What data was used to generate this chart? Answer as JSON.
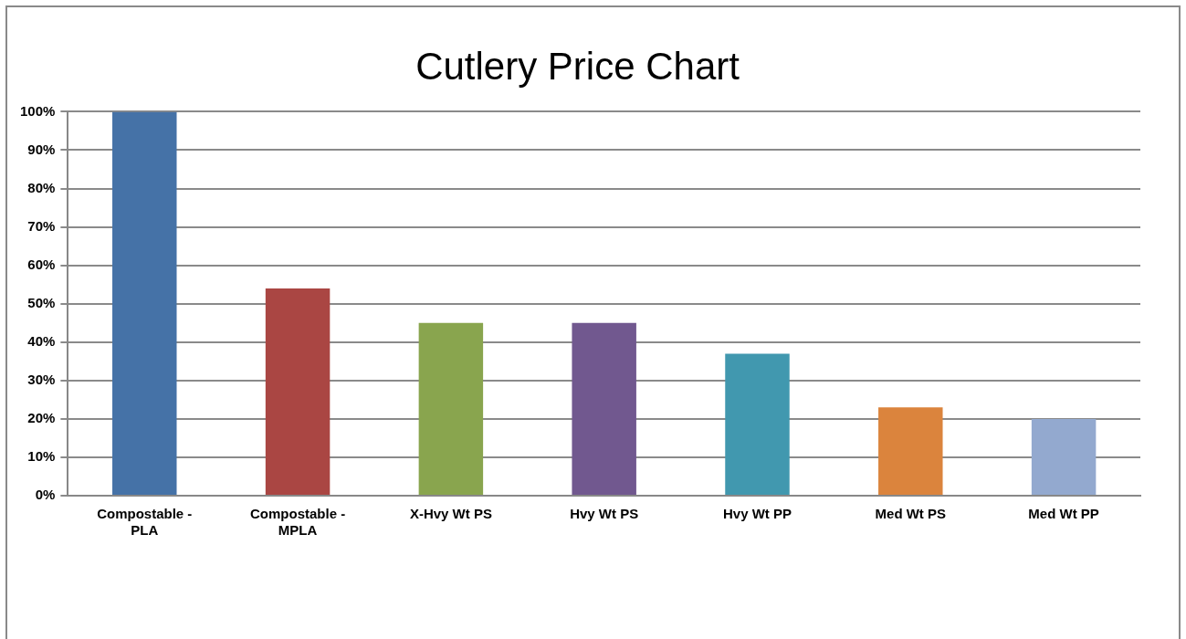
{
  "chart_data": {
    "type": "bar",
    "title": "Cutlery Price Chart",
    "categories": [
      "Compostable - PLA",
      "Compostable - MPLA",
      "X-Hvy Wt PS",
      "Hvy Wt PS",
      "Hvy Wt PP",
      "Med Wt PS",
      "Med Wt PP"
    ],
    "values": [
      100,
      54,
      45,
      45,
      37,
      23,
      20
    ],
    "colors": [
      "#4572a7",
      "#aa4643",
      "#89a54e",
      "#71588f",
      "#4198af",
      "#db843d",
      "#93a9cf"
    ],
    "ylim": [
      0,
      100
    ],
    "yticks": [
      {
        "value": 0,
        "label": "0%"
      },
      {
        "value": 10,
        "label": "10%"
      },
      {
        "value": 20,
        "label": "20%"
      },
      {
        "value": 30,
        "label": "30%"
      },
      {
        "value": 40,
        "label": "40%"
      },
      {
        "value": 50,
        "label": "50%"
      },
      {
        "value": 60,
        "label": "60%"
      },
      {
        "value": 70,
        "label": "70%"
      },
      {
        "value": 80,
        "label": "80%"
      },
      {
        "value": 90,
        "label": "90%"
      },
      {
        "value": 100,
        "label": "100%"
      }
    ],
    "grid": "y",
    "legend": false
  }
}
